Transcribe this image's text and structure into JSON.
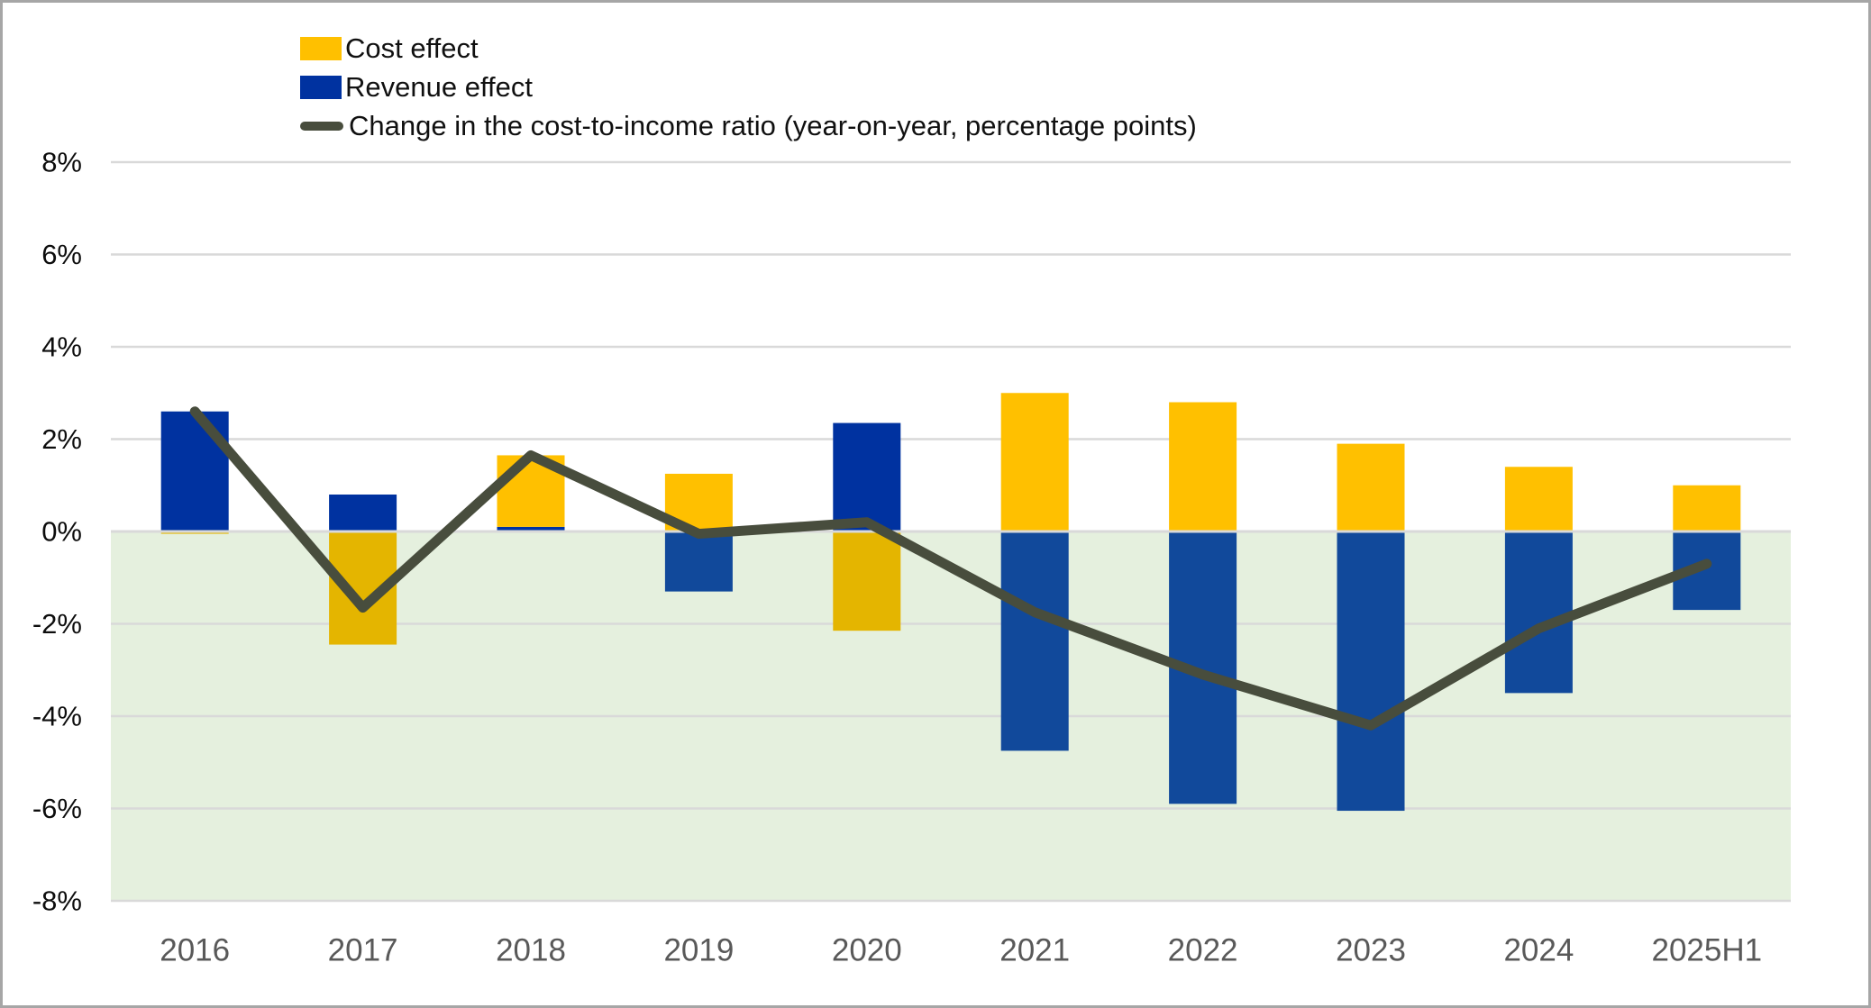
{
  "chart_data": {
    "type": "bar",
    "subtype": "stacked-bars-with-line-overlay",
    "categories": [
      "2016",
      "2017",
      "2018",
      "2019",
      "2020",
      "2021",
      "2022",
      "2023",
      "2024",
      "2025H1"
    ],
    "series": [
      {
        "name": "Cost effect",
        "type": "bar",
        "values": [
          -0.05,
          -2.45,
          1.55,
          1.25,
          -2.15,
          3.0,
          2.8,
          1.9,
          1.4,
          1.0
        ],
        "color_positive": "#FFC000",
        "color_negative": "#E4B500"
      },
      {
        "name": "Revenue effect",
        "type": "bar",
        "values": [
          2.6,
          0.8,
          0.1,
          -1.3,
          2.35,
          -4.75,
          -5.9,
          -6.05,
          -3.5,
          -1.7
        ],
        "color_positive": "#0032A0",
        "color_negative": "#11499B"
      },
      {
        "name": "Change in the cost-to-income ratio (year-on-year, percentage points)",
        "type": "line",
        "values": [
          2.6,
          -1.65,
          1.65,
          -0.05,
          0.2,
          -1.75,
          -3.1,
          -4.2,
          -2.1,
          -0.7
        ],
        "color": "#484D3D"
      }
    ],
    "stack_order_from_axis": [
      "Revenue effect",
      "Cost effect"
    ],
    "y_axis": {
      "tick_labels": [
        "8%",
        "6%",
        "4%",
        "2%",
        "0%",
        "-2%",
        "-4%",
        "-6%",
        "-8%"
      ],
      "tick_values": [
        8,
        6,
        4,
        2,
        0,
        -2,
        -4,
        -6,
        -8
      ],
      "min": -8,
      "max": 8,
      "label_color": "#0d0d0d"
    },
    "x_axis": {
      "label_color": "#595959"
    },
    "grid": true,
    "gridline_color": "#D9D9D9",
    "zero_line_color": "#D9D9D9",
    "negative_region_color": "#E5F0DE",
    "legend_position": "top-left"
  },
  "legend": {
    "items": [
      {
        "label": "Cost effect"
      },
      {
        "label": "Revenue effect"
      },
      {
        "label": "Change in the cost-to-income ratio (year-on-year, percentage points)"
      }
    ]
  },
  "frame": {
    "border_color": "#A6A6A6",
    "background": "#FFFFFF"
  }
}
